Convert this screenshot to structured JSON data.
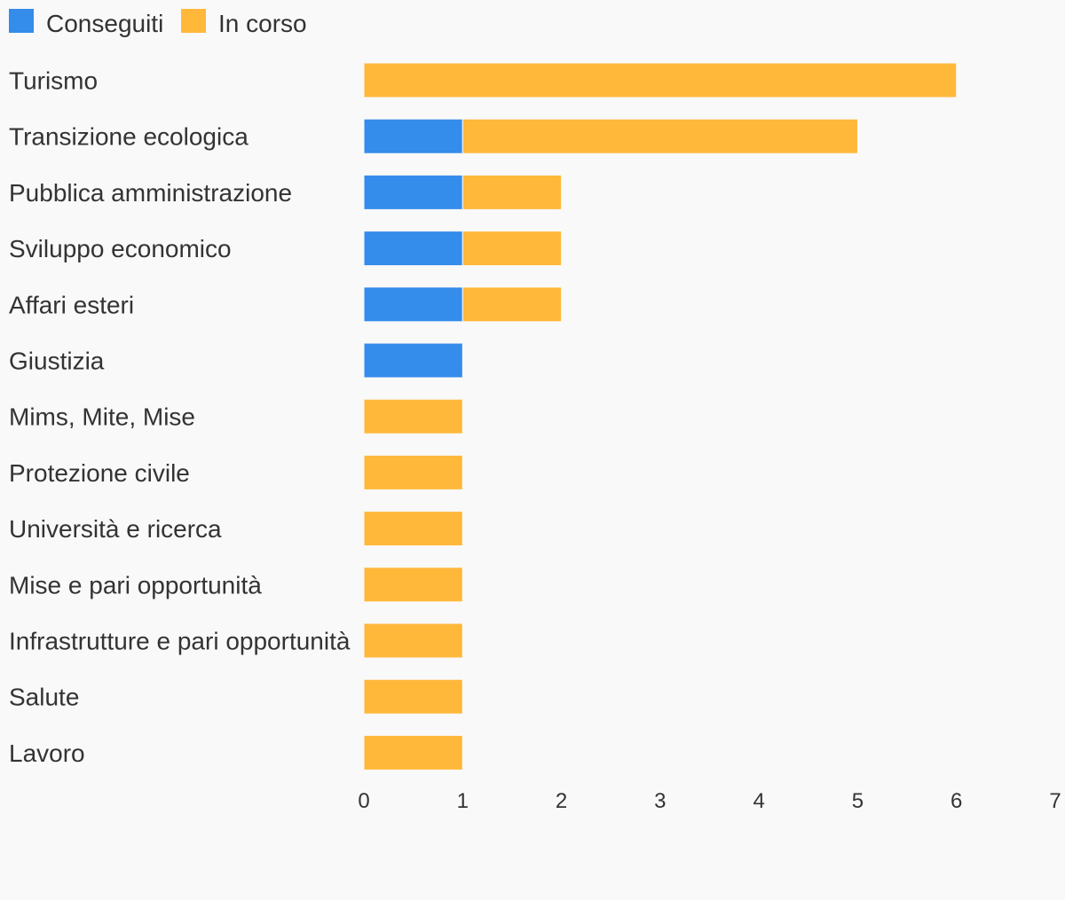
{
  "colors": {
    "background": "#f9f9f9",
    "conseguiti": "#348ceb",
    "in_corso": "#ffb83a",
    "text": "#333333"
  },
  "legend": {
    "placement": "top-left",
    "items": [
      {
        "key": "conseguiti",
        "label": "Conseguiti",
        "color": "#348ceb"
      },
      {
        "key": "in_corso",
        "label": "In corso",
        "color": "#ffb83a"
      }
    ]
  },
  "chart_data": {
    "type": "bar",
    "orientation": "horizontal",
    "stacked": true,
    "title": "",
    "xlabel": "",
    "ylabel": "",
    "xlim": [
      0,
      7
    ],
    "x_ticks": [
      "0",
      "1",
      "2",
      "3",
      "4",
      "5",
      "6",
      "7"
    ],
    "grid": false,
    "legend_placement": "top-left",
    "categories": [
      "Turismo",
      "Transizione ecologica",
      "Pubblica amministrazione",
      "Sviluppo economico",
      "Affari esteri",
      "Giustizia",
      "Mims, Mite, Mise",
      "Protezione civile",
      "Università e ricerca",
      "Mise e pari opportunità",
      "Infrastrutture e pari opportunità",
      "Salute",
      "Lavoro"
    ],
    "series": [
      {
        "name": "Conseguiti",
        "color": "#348ceb",
        "values": [
          0,
          1,
          1,
          1,
          1,
          1,
          0,
          0,
          0,
          0,
          0,
          0,
          0
        ]
      },
      {
        "name": "In corso",
        "color": "#ffb83a",
        "values": [
          6,
          4,
          1,
          1,
          1,
          0,
          1,
          1,
          1,
          1,
          1,
          1,
          1
        ]
      }
    ]
  }
}
